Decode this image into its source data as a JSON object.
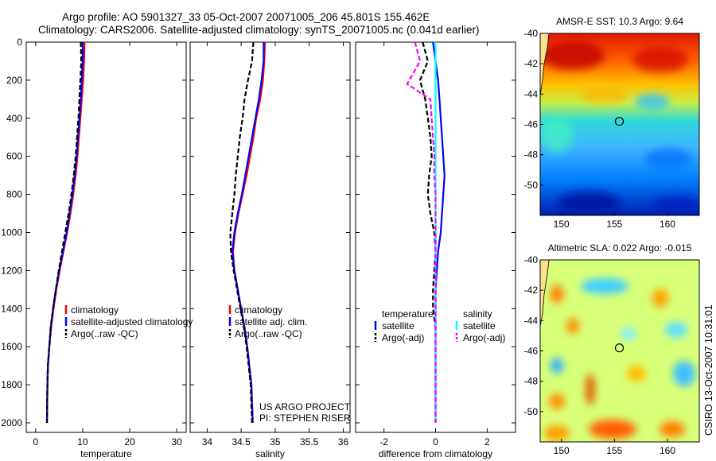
{
  "header": {
    "line1": "Argo profile: AO 5901327_33 05-Oct-2007 20071005_206 45.801S 155.462E",
    "line2": "Climatology: CARS2006. Satellite-adjusted climatology: synTS_20071005.nc (0.041d earlier)"
  },
  "side_label": "CSIRO 13-Oct-2007 10:31:01",
  "colors": {
    "climatology": "#ff0000",
    "satellite": "#0000ff",
    "argo": "#000000",
    "sal_satellite": "#00ffff",
    "sal_argo": "#ff00ff"
  },
  "chart_data": [
    {
      "type": "line",
      "id": "temperature",
      "xlabel": "temperature",
      "ylabel": "",
      "xlim": [
        -2,
        32
      ],
      "ylim": [
        0,
        2050
      ],
      "y_reversed": true,
      "xticks": [
        0,
        10,
        20,
        30
      ],
      "yticks": [
        0,
        200,
        400,
        600,
        800,
        1000,
        1200,
        1400,
        1600,
        1800,
        2000
      ],
      "legend": [
        "climatology",
        "satellite-adjusted climatology",
        "Argo(..raw -QC)"
      ],
      "series": [
        {
          "name": "climatology",
          "color": "#ff0000",
          "dash": "",
          "x": [
            10.4,
            10.3,
            10.1,
            9.8,
            9.5,
            9.2,
            8.9,
            8.5,
            8.0,
            7.4,
            6.7,
            5.9,
            5.1,
            4.4,
            3.8,
            3.3,
            2.9,
            2.6,
            2.5,
            2.4
          ],
          "y": [
            0,
            100,
            200,
            300,
            400,
            500,
            600,
            700,
            800,
            900,
            1000,
            1100,
            1200,
            1300,
            1400,
            1500,
            1600,
            1700,
            1800,
            2000
          ]
        },
        {
          "name": "satellite-adjusted climatology",
          "color": "#0000ff",
          "dash": "",
          "x": [
            10.0,
            10.0,
            9.8,
            9.6,
            9.3,
            9.0,
            8.7,
            8.3,
            7.8,
            7.2,
            6.6,
            5.8,
            5.0,
            4.3,
            3.7,
            3.2,
            2.9,
            2.6,
            2.5,
            2.4
          ],
          "y": [
            0,
            100,
            200,
            300,
            400,
            500,
            600,
            700,
            800,
            900,
            1000,
            1100,
            1200,
            1300,
            1400,
            1500,
            1600,
            1700,
            1800,
            2000
          ]
        },
        {
          "name": "Argo(..raw -QC)",
          "color": "#000000",
          "dash": "6,3",
          "x": [
            9.6,
            9.7,
            9.5,
            9.3,
            9.1,
            8.8,
            8.5,
            8.1,
            7.6,
            7.0,
            6.3,
            5.6,
            4.9,
            4.3,
            3.7,
            3.2,
            2.9,
            2.6,
            2.5,
            2.4
          ],
          "y": [
            0,
            100,
            200,
            300,
            400,
            500,
            600,
            700,
            800,
            900,
            1000,
            1100,
            1200,
            1300,
            1400,
            1500,
            1600,
            1700,
            1800,
            2000
          ]
        }
      ],
      "annotation": []
    },
    {
      "type": "line",
      "id": "salinity",
      "xlabel": "salinity",
      "ylabel": "",
      "xlim": [
        33.75,
        36.1
      ],
      "ylim": [
        0,
        2050
      ],
      "y_reversed": true,
      "xticks": [
        34,
        34.5,
        35,
        35.5,
        36
      ],
      "yticks": [
        0,
        200,
        400,
        600,
        800,
        1000,
        1200,
        1400,
        1600,
        1800,
        2000
      ],
      "legend": [
        "climatology",
        "satellite adj. clim.",
        "Argo(..raw -QC)"
      ],
      "series": [
        {
          "name": "climatology",
          "color": "#ff0000",
          "dash": "",
          "x": [
            34.85,
            34.84,
            34.82,
            34.78,
            34.72,
            34.68,
            34.63,
            34.58,
            34.52,
            34.46,
            34.41,
            34.38,
            34.4,
            34.45,
            34.5,
            34.55,
            34.59,
            34.62,
            34.65,
            34.67
          ],
          "y": [
            0,
            100,
            200,
            300,
            400,
            500,
            600,
            700,
            800,
            900,
            1000,
            1100,
            1200,
            1300,
            1400,
            1500,
            1600,
            1700,
            1800,
            2000
          ]
        },
        {
          "name": "satellite adj. clim.",
          "color": "#0000ff",
          "dash": "",
          "x": [
            34.83,
            34.83,
            34.8,
            34.76,
            34.71,
            34.66,
            34.61,
            34.56,
            34.51,
            34.45,
            34.4,
            34.37,
            34.4,
            34.45,
            34.5,
            34.55,
            34.59,
            34.62,
            34.65,
            34.67
          ],
          "y": [
            0,
            100,
            200,
            300,
            400,
            500,
            600,
            700,
            800,
            900,
            1000,
            1100,
            1200,
            1300,
            1400,
            1500,
            1600,
            1700,
            1800,
            2000
          ]
        },
        {
          "name": "Argo(..raw -QC)",
          "color": "#000000",
          "dash": "6,3",
          "x": [
            34.68,
            34.66,
            34.6,
            34.55,
            34.52,
            34.48,
            34.45,
            34.42,
            34.4,
            34.37,
            34.34,
            34.35,
            34.39,
            34.44,
            34.49,
            34.54,
            34.58,
            34.61,
            34.64,
            34.66
          ],
          "y": [
            0,
            100,
            200,
            300,
            400,
            500,
            600,
            700,
            800,
            900,
            1000,
            1100,
            1200,
            1300,
            1400,
            1500,
            1600,
            1700,
            1800,
            2000
          ]
        }
      ],
      "annotation": [
        "US ARGO PROJECT",
        "PI: STEPHEN RISER"
      ]
    },
    {
      "type": "line",
      "id": "difference",
      "xlabel": "difference from climatology",
      "ylabel": "",
      "xlim": [
        -3.1,
        3.1
      ],
      "ylim": [
        0,
        2050
      ],
      "y_reversed": true,
      "xticks": [
        -2,
        0,
        2
      ],
      "yticks": [
        0,
        200,
        400,
        600,
        800,
        1000,
        1200,
        1400,
        1600,
        1800,
        2000
      ],
      "legend_groups": [
        {
          "title": "temperature",
          "entries": [
            "satellite",
            "Argo(-adj)"
          ]
        },
        {
          "title": "salinity",
          "entries": [
            "satellite",
            "Argo(-adj)"
          ]
        }
      ],
      "series": [
        {
          "name": "temperature satellite",
          "color": "#0000ff",
          "dash": "",
          "x": [
            -0.1,
            0.0,
            0.1,
            0.15,
            0.2,
            0.25,
            0.3,
            0.35,
            0.3,
            0.25,
            0.2,
            0.1,
            0.05,
            0.0,
            0.0,
            0.0,
            0.0,
            0.0,
            0.0,
            0.0
          ],
          "y": [
            0,
            100,
            200,
            300,
            400,
            500,
            600,
            700,
            800,
            900,
            1000,
            1100,
            1200,
            1300,
            1400,
            1500,
            1600,
            1700,
            1800,
            2000
          ]
        },
        {
          "name": "temperature Argo(-adj)",
          "color": "#000000",
          "dash": "6,3",
          "x": [
            -0.5,
            -0.3,
            -0.6,
            -0.4,
            -0.3,
            -0.2,
            -0.15,
            -0.25,
            -0.3,
            -0.2,
            -0.05,
            0.0,
            -0.05,
            -0.1,
            -0.1,
            0.0,
            0.0,
            0.0,
            0.0,
            0.0
          ],
          "y": [
            0,
            100,
            200,
            300,
            400,
            500,
            600,
            700,
            800,
            900,
            1000,
            1100,
            1200,
            1300,
            1400,
            1500,
            1600,
            1700,
            1800,
            2000
          ]
        },
        {
          "name": "salinity satellite",
          "color": "#00ffff",
          "dash": "",
          "x": [
            0.0,
            0.0,
            0.0,
            0.0,
            0.0,
            0.0,
            0.0,
            0.0,
            0.0,
            0.0,
            0.0,
            0.0,
            0.0,
            0.0,
            0.0,
            0.0,
            0.0,
            0.0,
            0.0,
            0.0
          ],
          "y": [
            0,
            100,
            200,
            300,
            400,
            500,
            600,
            700,
            800,
            900,
            1000,
            1100,
            1200,
            1300,
            1400,
            1500,
            1600,
            1700,
            1800,
            2000
          ]
        },
        {
          "name": "salinity Argo(-adj)",
          "color": "#ff00ff",
          "dash": "6,3",
          "x": [
            -0.8,
            -0.6,
            -1.1,
            -0.2,
            -0.15,
            -0.1,
            -0.05,
            -0.05,
            0.0,
            0.0,
            0.0,
            0.0,
            0.0,
            0.0,
            0.0,
            0.0,
            0.0,
            0.0,
            0.0,
            0.0
          ],
          "y": [
            0,
            100,
            220,
            300,
            400,
            500,
            600,
            700,
            800,
            900,
            1000,
            1100,
            1200,
            1300,
            1400,
            1500,
            1600,
            1700,
            1800,
            2000
          ]
        }
      ],
      "annotation": []
    },
    {
      "type": "heatmap",
      "id": "sst_map",
      "title": "AMSR-E SST: 10.3 Argo: 9.64",
      "xlim": [
        148,
        163
      ],
      "ylim": [
        -52,
        -40
      ],
      "xticks": [
        150,
        155,
        160
      ],
      "yticks": [
        -40,
        -42,
        -44,
        -46,
        -48,
        -50
      ],
      "marker": {
        "lon": 155.462,
        "lat": -45.801
      }
    },
    {
      "type": "heatmap",
      "id": "sla_map",
      "title": "Altimetric SLA: 0.022 Argo: -0.015",
      "xlim": [
        148,
        163
      ],
      "ylim": [
        -52,
        -40
      ],
      "xticks": [
        150,
        155,
        160
      ],
      "yticks": [
        -40,
        -42,
        -44,
        -46,
        -48,
        -50
      ],
      "marker": {
        "lon": 155.462,
        "lat": -45.801
      }
    }
  ]
}
